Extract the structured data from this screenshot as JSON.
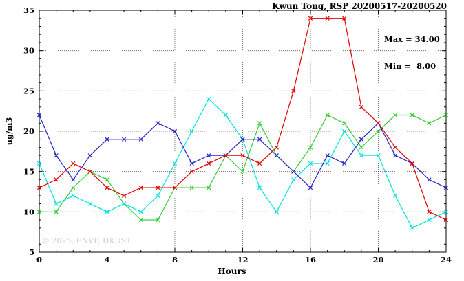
{
  "title": "Kwun Tong, RSP 20200517-20200520",
  "annotation": {
    "max_label": "Max = 34.00",
    "min_label": "Min =  8.00"
  },
  "watermark": "© 2025, ENVF, HKUST",
  "chart_data": {
    "type": "line",
    "title": "Kwun Tong, RSP 20200517-20200520",
    "xlabel": "Hours",
    "ylabel": "ug/m3",
    "xlim": [
      0,
      24
    ],
    "ylim": [
      5,
      35
    ],
    "xticks": [
      0,
      4,
      8,
      12,
      16,
      20,
      24
    ],
    "yticks": [
      5,
      10,
      15,
      20,
      25,
      30,
      35
    ],
    "grid": true,
    "legend": false,
    "marker": "x",
    "max": 34.0,
    "min": 8.0,
    "x": [
      0,
      1,
      2,
      3,
      4,
      5,
      6,
      7,
      8,
      9,
      10,
      11,
      12,
      13,
      14,
      15,
      16,
      17,
      18,
      19,
      20,
      21,
      22,
      23,
      24
    ],
    "series": [
      {
        "name": "green",
        "color": "#33cc33",
        "values": [
          10,
          10,
          13,
          15,
          14,
          11,
          9,
          9,
          13,
          13,
          13,
          17,
          15,
          21,
          17,
          15,
          18,
          22,
          21,
          18,
          20,
          22,
          22,
          21,
          22
        ]
      },
      {
        "name": "cyan",
        "color": "#00e0e0",
        "values": [
          16,
          11,
          12,
          11,
          10,
          11,
          10,
          12,
          16,
          20,
          24,
          22,
          19,
          13,
          10,
          14,
          16,
          16,
          20,
          17,
          17,
          12,
          8,
          9,
          10
        ]
      },
      {
        "name": "blue",
        "color": "#2222cc",
        "values": [
          22,
          17,
          14,
          17,
          19,
          19,
          19,
          21,
          20,
          16,
          17,
          17,
          19,
          19,
          17,
          15,
          13,
          17,
          16,
          19,
          21,
          17,
          16,
          14,
          13
        ]
      },
      {
        "name": "red",
        "color": "#e00000",
        "values": [
          13,
          14,
          16,
          15,
          13,
          12,
          13,
          13,
          13,
          15,
          16,
          17,
          17,
          16,
          18,
          25,
          34,
          34,
          34,
          23,
          21,
          18,
          16,
          10,
          9
        ]
      }
    ]
  }
}
